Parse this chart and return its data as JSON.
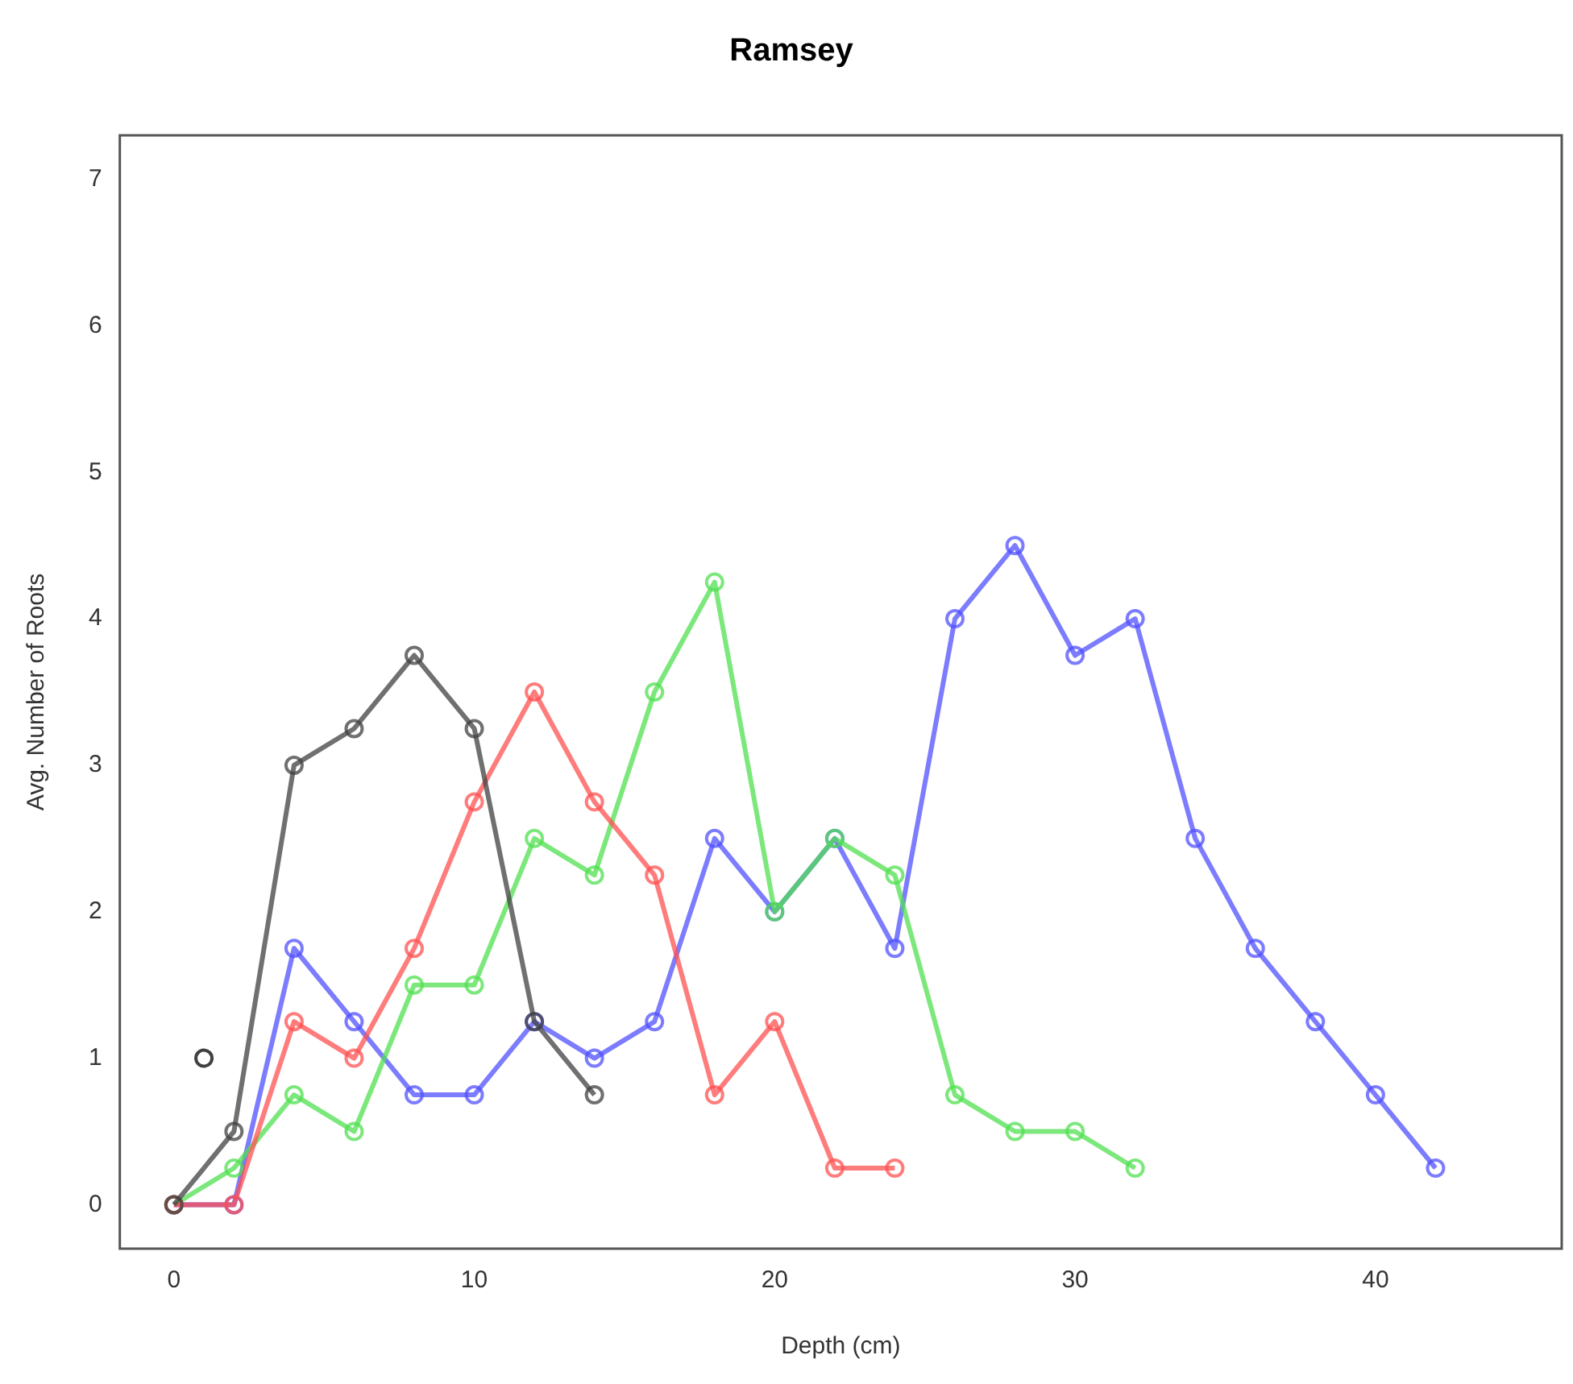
{
  "chart_data": {
    "type": "line",
    "title": "Ramsey",
    "xlabel": "Depth (cm)",
    "ylabel": "Avg. Number of Roots",
    "xlim": [
      -1.8,
      46.2
    ],
    "ylim": [
      -0.3,
      7.3
    ],
    "xticks": [
      0,
      10,
      20,
      30,
      40
    ],
    "yticks": [
      0,
      1,
      2,
      3,
      4,
      5,
      6,
      7
    ],
    "grid": false,
    "legend": false,
    "marker": "circle",
    "line_style": "solid",
    "series": [
      {
        "color": "#404040",
        "x": [
          0,
          2,
          4,
          6,
          8,
          10,
          12,
          14
        ],
        "values": [
          0,
          0.5,
          3,
          3.25,
          3.75,
          3.25,
          1.25,
          0.75
        ]
      },
      {
        "color": "#ff5050",
        "x": [
          0,
          2,
          4,
          6,
          8,
          10,
          12,
          14,
          16,
          18,
          20,
          22,
          24
        ],
        "values": [
          0,
          0,
          1.25,
          1,
          1.75,
          2.75,
          3.5,
          2.75,
          2.25,
          0.75,
          1.25,
          0.25,
          0.25
        ]
      },
      {
        "color": "#50e050",
        "x": [
          0,
          2,
          4,
          6,
          8,
          10,
          12,
          14,
          16,
          18,
          20,
          22,
          24,
          26,
          28,
          30,
          32
        ],
        "values": [
          0,
          0.25,
          0.75,
          0.5,
          1.5,
          1.5,
          2.5,
          2.25,
          3.5,
          4.25,
          2,
          2.5,
          2.25,
          0.75,
          0.5,
          0.5,
          0.25
        ]
      },
      {
        "color": "#5050ff",
        "x": [
          0,
          2,
          4,
          6,
          8,
          10,
          12,
          14,
          16,
          18,
          20,
          22,
          24,
          26,
          28,
          30,
          32,
          34,
          36,
          38,
          40,
          42
        ],
        "values": [
          0,
          0,
          1.75,
          1.25,
          0.75,
          0.75,
          1.25,
          1,
          1.25,
          2.5,
          2,
          2.5,
          1.75,
          4,
          4.5,
          3.75,
          4,
          2.5,
          1.75,
          1.25,
          0.75,
          0.25
        ]
      },
      {
        "type": "scatter",
        "color": "#000000",
        "x": [
          1
        ],
        "values": [
          1
        ]
      }
    ]
  }
}
